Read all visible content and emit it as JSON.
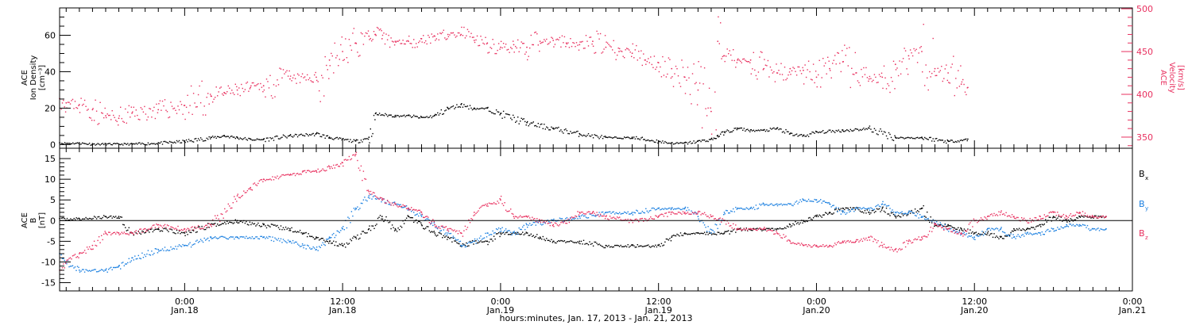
{
  "colors": {
    "black": "#000000",
    "pink": "#e8305f",
    "blue": "#1a7fe0"
  },
  "chart_data": [
    {
      "type": "scatter",
      "panel": "top",
      "ylabel_left": [
        "ACE",
        "Ion Density",
        "[cm⁻³]"
      ],
      "ylabel_right": [
        "ACE",
        "Velocity",
        "[km/s]"
      ],
      "ylim_left": [
        -2,
        75
      ],
      "yticks_left": [
        "0",
        "20",
        "40",
        "60"
      ],
      "ylim_right": [
        337,
        501
      ],
      "yticks_right": [
        "350",
        "400",
        "450",
        "500"
      ],
      "x_unit": "hours since Jan.17 00:00",
      "xlim": [
        14.5,
        96
      ],
      "series": [
        {
          "axis": "left",
          "color": "black",
          "x": [
            14.5,
            16,
            17,
            18,
            20,
            22,
            24,
            26,
            27,
            28,
            29,
            30,
            32,
            34,
            35,
            36,
            37,
            38,
            38.5,
            40,
            41,
            42,
            43,
            44,
            45,
            46,
            47,
            48,
            50,
            52,
            54,
            56,
            58,
            60,
            61,
            62,
            63,
            64,
            64.5,
            65,
            66,
            67,
            68,
            69,
            70,
            71,
            72,
            74,
            76,
            78,
            80,
            82,
            83.5
          ],
          "y": [
            1,
            1,
            0.5,
            0.5,
            0.5,
            1,
            2,
            4,
            5,
            4,
            3,
            3,
            5,
            6,
            4,
            3,
            2,
            4,
            17,
            16,
            16,
            15,
            16,
            20,
            22,
            20,
            20,
            17,
            12,
            9,
            6,
            4,
            4,
            2,
            1,
            1,
            2,
            3,
            5,
            7,
            9,
            8,
            8,
            9,
            6,
            5,
            7,
            8,
            9,
            4,
            4,
            2,
            3
          ]
        },
        {
          "axis": "right",
          "color": "pink",
          "x": [
            14.5,
            15,
            16,
            17,
            18,
            19,
            20,
            22,
            24,
            26,
            27,
            28,
            29,
            30,
            32,
            34,
            35,
            36,
            37,
            38,
            38.5,
            39,
            40,
            41,
            42,
            43,
            44,
            45,
            46,
            47,
            48,
            49,
            50,
            51,
            52,
            53,
            54,
            55,
            56,
            57,
            58,
            59,
            60,
            61,
            62,
            63,
            64,
            64.5,
            65,
            66,
            67,
            68,
            69,
            70,
            71,
            72,
            73,
            74,
            75,
            76,
            77,
            78,
            79,
            80,
            81,
            82,
            83,
            83.5
          ],
          "y": [
            395,
            390,
            388,
            382,
            375,
            372,
            378,
            382,
            387,
            398,
            402,
            405,
            408,
            410,
            418,
            420,
            440,
            450,
            460,
            468,
            470,
            465,
            462,
            462,
            465,
            468,
            470,
            470,
            463,
            460,
            455,
            458,
            455,
            462,
            463,
            460,
            458,
            462,
            455,
            450,
            448,
            440,
            437,
            430,
            420,
            405,
            380,
            462,
            445,
            440,
            440,
            430,
            425,
            430,
            428,
            420,
            430,
            438,
            425,
            418,
            420,
            435,
            445,
            450,
            430,
            425,
            412,
            408
          ]
        }
      ]
    },
    {
      "type": "scatter",
      "panel": "bottom",
      "ylabel_left": [
        "ACE",
        "B",
        "[nT]"
      ],
      "ylim": [
        -17,
        17.5
      ],
      "yticks": [
        "15",
        "10",
        "5",
        "0",
        "-5",
        "-10",
        "-15"
      ],
      "legend": [
        {
          "label": "B",
          "sub": "x",
          "color": "black"
        },
        {
          "label": "B",
          "sub": "y",
          "color": "blue"
        },
        {
          "label": "B",
          "sub": "z",
          "color": "pink"
        }
      ],
      "legend_position": "right",
      "xlabel": "hours:minutes, Jan. 17, 2013 - Jan. 21, 2013",
      "xticks": [
        {
          "x": 24,
          "time": "0:00",
          "date": "Jan.18"
        },
        {
          "x": 36,
          "time": "12:00",
          "date": "Jan.18"
        },
        {
          "x": 48,
          "time": "0:00",
          "date": "Jan.19"
        },
        {
          "x": 60,
          "time": "12:00",
          "date": "Jan.19"
        },
        {
          "x": 72,
          "time": "0:00",
          "date": "Jan.20"
        },
        {
          "x": 84,
          "time": "12:00",
          "date": "Jan.20"
        },
        {
          "x": 96,
          "time": "0:00",
          "date": "Jan.21"
        }
      ],
      "series": [
        {
          "name": "Bx",
          "color": "black",
          "x": [
            14.5,
            16,
            18,
            19,
            20,
            22,
            24,
            26,
            28,
            30,
            32,
            33,
            34,
            35,
            36,
            37,
            38,
            39,
            40,
            41,
            42,
            43,
            44,
            45,
            46,
            47,
            48,
            50,
            51,
            52,
            54,
            56,
            58,
            60,
            61,
            62,
            63,
            64,
            65,
            66,
            67,
            68,
            69,
            70,
            71,
            72,
            73,
            74,
            75,
            76,
            77,
            78,
            79,
            80,
            81,
            82,
            83,
            84,
            85,
            86,
            87,
            88,
            89,
            90,
            91,
            92,
            93,
            94
          ],
          "y": [
            0.5,
            0.5,
            1,
            1,
            -3,
            -2,
            -3,
            -1,
            0,
            -1,
            -2,
            -3,
            -4,
            -5,
            -6,
            -4,
            -2,
            1,
            -2,
            1,
            -1,
            -3,
            -4,
            -6,
            -5,
            -5,
            -3,
            -3,
            -4,
            -5,
            -5,
            -6,
            -6,
            -6,
            -4,
            -3,
            -3,
            -3,
            -3,
            -2,
            -2,
            -2,
            -2,
            -1,
            0,
            1,
            2,
            3,
            3,
            2,
            3,
            1,
            2,
            3,
            -1,
            -1,
            -2,
            -3,
            -3,
            -4,
            -2,
            -2,
            -1,
            1,
            0,
            1,
            1,
            1
          ]
        },
        {
          "name": "By",
          "color": "blue",
          "x": [
            14.5,
            15,
            16,
            18,
            19,
            20,
            22,
            24,
            26,
            28,
            30,
            32,
            33,
            34,
            35,
            36,
            37,
            38,
            39,
            40,
            41,
            42,
            43,
            44,
            45,
            46,
            47,
            48,
            49,
            50,
            52,
            54,
            56,
            58,
            60,
            61,
            62,
            63,
            64,
            65,
            66,
            67,
            68,
            69,
            70,
            71,
            72,
            73,
            74,
            75,
            76,
            77,
            78,
            79,
            80,
            81,
            82,
            83,
            84,
            85,
            86,
            87,
            88,
            89,
            90,
            91,
            92,
            93,
            94
          ],
          "y": [
            -8,
            -10,
            -12,
            -12,
            -11,
            -9,
            -7,
            -6,
            -4,
            -4,
            -4,
            -5,
            -6,
            -7,
            -4,
            -2,
            3,
            6,
            5,
            4,
            3,
            1,
            -1,
            -3,
            -6,
            -5,
            -3,
            -2,
            -3,
            -1,
            0,
            1,
            2,
            2,
            3,
            3,
            3,
            1,
            -3,
            2,
            3,
            3,
            4,
            4,
            4,
            5,
            5,
            4,
            2,
            3,
            3,
            4,
            2,
            2,
            1,
            0,
            -2,
            -3,
            -4,
            -2,
            -2,
            -4,
            -3,
            -3,
            -2,
            -1,
            -1,
            -2,
            -2
          ]
        },
        {
          "name": "Bz",
          "color": "pink",
          "x": [
            14.5,
            15,
            16,
            17,
            18,
            19,
            20,
            21,
            22,
            24,
            26,
            28,
            29,
            30,
            32,
            33,
            34,
            35,
            36,
            37,
            38,
            39,
            40,
            41,
            42,
            43,
            44,
            45,
            46,
            47,
            48,
            49,
            50,
            51,
            52,
            53,
            54,
            55,
            56,
            58,
            60,
            61,
            62,
            63,
            64,
            65,
            66,
            67,
            68,
            69,
            70,
            71,
            72,
            73,
            74,
            75,
            76,
            77,
            78,
            79,
            80,
            81,
            82,
            83,
            84,
            85,
            86,
            87,
            88,
            89,
            90,
            91,
            92,
            93,
            94
          ],
          "y": [
            -12,
            -10,
            -8,
            -6,
            -3,
            -3,
            -3,
            -2,
            -1,
            -2,
            -1,
            6,
            8,
            10,
            11,
            12,
            12,
            13,
            14,
            16,
            7,
            5,
            4,
            3,
            2,
            -1,
            -2,
            -3,
            2,
            4,
            5,
            1,
            1,
            0,
            -1,
            0,
            2,
            2,
            1,
            0,
            1,
            2,
            2,
            2,
            1,
            0,
            -2,
            -2,
            -2,
            -3,
            -5,
            -6,
            -6,
            -6,
            -5,
            -5,
            -4,
            -6,
            -7,
            -5,
            -4,
            -1,
            -2,
            -3,
            0,
            1,
            2,
            1,
            0,
            1,
            2,
            1,
            2,
            1,
            1
          ]
        }
      ]
    }
  ]
}
